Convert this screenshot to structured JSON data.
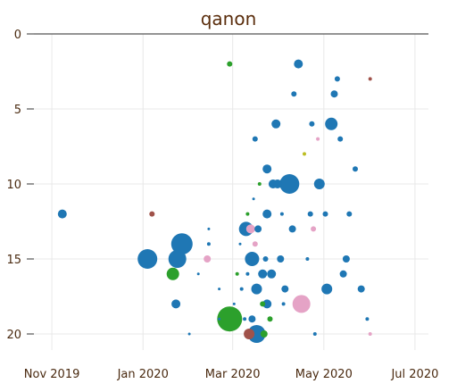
{
  "chart_data": {
    "type": "scatter",
    "title": "qanon",
    "xlabel": "",
    "ylabel": "",
    "x_ticks": [
      "Nov 2019",
      "Jan 2020",
      "Mar 2020",
      "May 2020",
      "Jul 2020"
    ],
    "x_tick_dates": [
      "2019-11-01",
      "2020-01-01",
      "2020-03-01",
      "2020-05-01",
      "2020-07-01"
    ],
    "x_range": [
      "2019-10-20",
      "2020-07-10"
    ],
    "y_ticks": [
      0,
      5,
      10,
      15,
      20
    ],
    "y_range": [
      0,
      21
    ],
    "y_inverted": true,
    "grid": true,
    "legend": "none",
    "colors": {
      "blue": "#1f77b4",
      "green": "#2ca02c",
      "pink": "#e5a3c6",
      "brown": "#a0524a",
      "olive": "#bcbd22"
    },
    "points": [
      {
        "date": "2019-11-08",
        "y": 12,
        "size": 5,
        "color": "blue"
      },
      {
        "date": "2020-01-04",
        "y": 15,
        "size": 11,
        "color": "blue"
      },
      {
        "date": "2020-01-07",
        "y": 12,
        "size": 3,
        "color": "brown"
      },
      {
        "date": "2020-01-21",
        "y": 16,
        "size": 7,
        "color": "green"
      },
      {
        "date": "2020-01-23",
        "y": 18,
        "size": 5,
        "color": "blue"
      },
      {
        "date": "2020-01-24",
        "y": 15,
        "size": 10,
        "color": "blue"
      },
      {
        "date": "2020-01-27",
        "y": 14,
        "size": 12,
        "color": "blue"
      },
      {
        "date": "2020-02-01",
        "y": 20,
        "size": 1.5,
        "color": "blue"
      },
      {
        "date": "2020-02-07",
        "y": 16,
        "size": 1.5,
        "color": "blue"
      },
      {
        "date": "2020-02-13",
        "y": 15,
        "size": 4,
        "color": "pink"
      },
      {
        "date": "2020-02-14",
        "y": 14,
        "size": 2,
        "color": "blue"
      },
      {
        "date": "2020-02-14",
        "y": 13,
        "size": 1.5,
        "color": "blue"
      },
      {
        "date": "2020-02-21",
        "y": 19,
        "size": 1.5,
        "color": "blue"
      },
      {
        "date": "2020-02-21",
        "y": 17,
        "size": 1.5,
        "color": "blue"
      },
      {
        "date": "2020-02-28",
        "y": 19,
        "size": 14,
        "color": "green"
      },
      {
        "date": "2020-02-28",
        "y": 2,
        "size": 3,
        "color": "green"
      },
      {
        "date": "2020-03-02",
        "y": 18,
        "size": 1.5,
        "color": "blue"
      },
      {
        "date": "2020-03-04",
        "y": 16,
        "size": 2,
        "color": "green"
      },
      {
        "date": "2020-03-06",
        "y": 14,
        "size": 1.5,
        "color": "blue"
      },
      {
        "date": "2020-03-07",
        "y": 17,
        "size": 2,
        "color": "blue"
      },
      {
        "date": "2020-03-09",
        "y": 19,
        "size": 2,
        "color": "blue"
      },
      {
        "date": "2020-03-10",
        "y": 13,
        "size": 8,
        "color": "blue"
      },
      {
        "date": "2020-03-11",
        "y": 12,
        "size": 2,
        "color": "green"
      },
      {
        "date": "2020-03-11",
        "y": 16,
        "size": 2,
        "color": "blue"
      },
      {
        "date": "2020-03-12",
        "y": 20,
        "size": 6,
        "color": "brown"
      },
      {
        "date": "2020-03-13",
        "y": 13,
        "size": 5,
        "color": "pink"
      },
      {
        "date": "2020-03-14",
        "y": 15,
        "size": 8,
        "color": "blue"
      },
      {
        "date": "2020-03-14",
        "y": 19,
        "size": 4,
        "color": "blue"
      },
      {
        "date": "2020-03-15",
        "y": 11,
        "size": 1.5,
        "color": "blue"
      },
      {
        "date": "2020-03-16",
        "y": 7,
        "size": 3,
        "color": "blue"
      },
      {
        "date": "2020-03-16",
        "y": 14,
        "size": 3,
        "color": "pink"
      },
      {
        "date": "2020-03-17",
        "y": 20,
        "size": 10,
        "color": "blue"
      },
      {
        "date": "2020-03-17",
        "y": 17,
        "size": 6,
        "color": "blue"
      },
      {
        "date": "2020-03-18",
        "y": 13,
        "size": 4,
        "color": "blue"
      },
      {
        "date": "2020-03-19",
        "y": 10,
        "size": 2,
        "color": "green"
      },
      {
        "date": "2020-03-21",
        "y": 16,
        "size": 5,
        "color": "blue"
      },
      {
        "date": "2020-03-21",
        "y": 18,
        "size": 3,
        "color": "green"
      },
      {
        "date": "2020-03-22",
        "y": 20,
        "size": 4,
        "color": "green"
      },
      {
        "date": "2020-03-23",
        "y": 15,
        "size": 3,
        "color": "blue"
      },
      {
        "date": "2020-03-24",
        "y": 9,
        "size": 5,
        "color": "blue"
      },
      {
        "date": "2020-03-24",
        "y": 12,
        "size": 5,
        "color": "blue"
      },
      {
        "date": "2020-03-24",
        "y": 18,
        "size": 5,
        "color": "blue"
      },
      {
        "date": "2020-03-26",
        "y": 19,
        "size": 3,
        "color": "green"
      },
      {
        "date": "2020-03-27",
        "y": 16,
        "size": 5,
        "color": "blue"
      },
      {
        "date": "2020-03-28",
        "y": 10,
        "size": 5,
        "color": "blue"
      },
      {
        "date": "2020-03-30",
        "y": 6,
        "size": 5,
        "color": "blue"
      },
      {
        "date": "2020-03-31",
        "y": 10,
        "size": 5,
        "color": "blue"
      },
      {
        "date": "2020-04-02",
        "y": 15,
        "size": 4,
        "color": "blue"
      },
      {
        "date": "2020-04-03",
        "y": 12,
        "size": 2,
        "color": "blue"
      },
      {
        "date": "2020-04-04",
        "y": 18,
        "size": 2,
        "color": "blue"
      },
      {
        "date": "2020-04-05",
        "y": 17,
        "size": 4,
        "color": "blue"
      },
      {
        "date": "2020-04-08",
        "y": 10,
        "size": 11,
        "color": "blue"
      },
      {
        "date": "2020-04-10",
        "y": 13,
        "size": 4,
        "color": "blue"
      },
      {
        "date": "2020-04-11",
        "y": 4,
        "size": 3,
        "color": "blue"
      },
      {
        "date": "2020-04-14",
        "y": 2,
        "size": 5,
        "color": "blue"
      },
      {
        "date": "2020-04-16",
        "y": 18,
        "size": 10,
        "color": "pink"
      },
      {
        "date": "2020-04-18",
        "y": 8,
        "size": 2,
        "color": "olive"
      },
      {
        "date": "2020-04-20",
        "y": 15,
        "size": 2,
        "color": "blue"
      },
      {
        "date": "2020-04-22",
        "y": 12,
        "size": 3,
        "color": "blue"
      },
      {
        "date": "2020-04-23",
        "y": 6,
        "size": 3,
        "color": "blue"
      },
      {
        "date": "2020-04-24",
        "y": 13,
        "size": 3,
        "color": "pink"
      },
      {
        "date": "2020-04-25",
        "y": 20,
        "size": 2,
        "color": "blue"
      },
      {
        "date": "2020-04-27",
        "y": 7,
        "size": 2,
        "color": "pink"
      },
      {
        "date": "2020-04-28",
        "y": 10,
        "size": 6,
        "color": "blue"
      },
      {
        "date": "2020-05-02",
        "y": 12,
        "size": 3,
        "color": "blue"
      },
      {
        "date": "2020-05-03",
        "y": 17,
        "size": 6,
        "color": "blue"
      },
      {
        "date": "2020-05-06",
        "y": 6,
        "size": 7,
        "color": "blue"
      },
      {
        "date": "2020-05-08",
        "y": 4,
        "size": 4,
        "color": "blue"
      },
      {
        "date": "2020-05-10",
        "y": 3,
        "size": 3,
        "color": "blue"
      },
      {
        "date": "2020-05-12",
        "y": 7,
        "size": 3,
        "color": "blue"
      },
      {
        "date": "2020-05-14",
        "y": 16,
        "size": 4,
        "color": "blue"
      },
      {
        "date": "2020-05-16",
        "y": 15,
        "size": 4,
        "color": "blue"
      },
      {
        "date": "2020-05-18",
        "y": 12,
        "size": 3,
        "color": "blue"
      },
      {
        "date": "2020-05-22",
        "y": 9,
        "size": 3,
        "color": "blue"
      },
      {
        "date": "2020-05-26",
        "y": 17,
        "size": 4,
        "color": "blue"
      },
      {
        "date": "2020-05-30",
        "y": 19,
        "size": 2,
        "color": "blue"
      },
      {
        "date": "2020-06-01",
        "y": 3,
        "size": 2,
        "color": "brown"
      },
      {
        "date": "2020-06-01",
        "y": 20,
        "size": 2,
        "color": "pink"
      }
    ]
  }
}
